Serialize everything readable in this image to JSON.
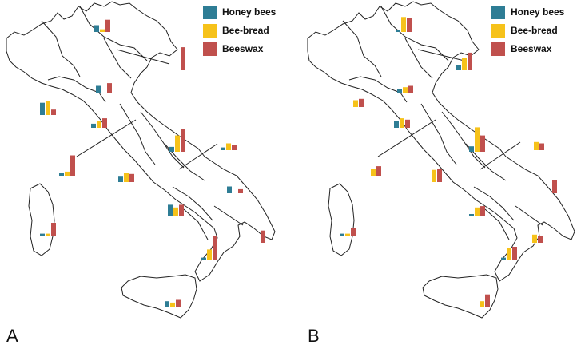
{
  "colors": {
    "honey_bees": "#2e7d95",
    "bee_bread": "#f6c21a",
    "beeswax": "#c0504d"
  },
  "legend": {
    "honey_bees": "Honey bees",
    "bee_bread": "Bee-bread",
    "beeswax": "Beeswax"
  },
  "panels": [
    {
      "label": "A",
      "regions": [
        {
          "name": "trentino-alto-adige",
          "values": [
            0.25,
            0.1,
            0.45
          ]
        },
        {
          "name": "friuli-venezia-giulia",
          "values": [
            0,
            0,
            0.85
          ]
        },
        {
          "name": "emilia-romagna",
          "values": [
            0.25,
            0,
            0.35
          ]
        },
        {
          "name": "liguria",
          "values": [
            0.45,
            0.5,
            0.2
          ]
        },
        {
          "name": "tuscany",
          "values": [
            0.15,
            0.25,
            0.35
          ]
        },
        {
          "name": "marche",
          "values": [
            0.18,
            0.6,
            0.85
          ]
        },
        {
          "name": "lazio-coast",
          "values": [
            0.1,
            0.15,
            0.75
          ]
        },
        {
          "name": "abruzzo",
          "values": [
            0.1,
            0.25,
            0.2
          ]
        },
        {
          "name": "lazio",
          "values": [
            0.2,
            0.35,
            0.3
          ]
        },
        {
          "name": "apulia-north",
          "values": [
            0.25,
            0,
            0.15
          ]
        },
        {
          "name": "sardinia",
          "values": [
            0.1,
            0.1,
            0.5
          ]
        },
        {
          "name": "campania",
          "values": [
            0.4,
            0.3,
            0.4
          ]
        },
        {
          "name": "apulia-south",
          "values": [
            0,
            0,
            0.45
          ]
        },
        {
          "name": "calabria",
          "values": [
            0.1,
            0.4,
            0.9
          ]
        },
        {
          "name": "sicily",
          "values": [
            0.2,
            0.15,
            0.25
          ]
        }
      ]
    },
    {
      "label": "B",
      "regions": [
        {
          "name": "trentino-alto-adige",
          "values": [
            0.08,
            0.55,
            0.5
          ]
        },
        {
          "name": "veneto",
          "values": [
            0.2,
            0.45,
            0.65
          ]
        },
        {
          "name": "emilia-romagna",
          "values": [
            0.12,
            0.2,
            0.25
          ]
        },
        {
          "name": "liguria",
          "values": [
            0,
            0.25,
            0.3
          ]
        },
        {
          "name": "tuscany",
          "values": [
            0.25,
            0.35,
            0.3
          ]
        },
        {
          "name": "marche",
          "values": [
            0.2,
            0.9,
            0.6
          ]
        },
        {
          "name": "abruzzo",
          "values": [
            0,
            0.3,
            0.25
          ]
        },
        {
          "name": "lazio-coast",
          "values": [
            0,
            0.25,
            0.35
          ]
        },
        {
          "name": "lazio",
          "values": [
            0,
            0.45,
            0.5
          ]
        },
        {
          "name": "apulia",
          "values": [
            0,
            0,
            0.5
          ]
        },
        {
          "name": "sardinia",
          "values": [
            0.1,
            0.1,
            0.3
          ]
        },
        {
          "name": "campania",
          "values": [
            0.05,
            0.3,
            0.35
          ]
        },
        {
          "name": "basilicata",
          "values": [
            0,
            0.3,
            0.25
          ]
        },
        {
          "name": "calabria",
          "values": [
            0.1,
            0.45,
            0.5
          ]
        },
        {
          "name": "sicily",
          "values": [
            0,
            0.2,
            0.45
          ]
        }
      ]
    }
  ]
}
